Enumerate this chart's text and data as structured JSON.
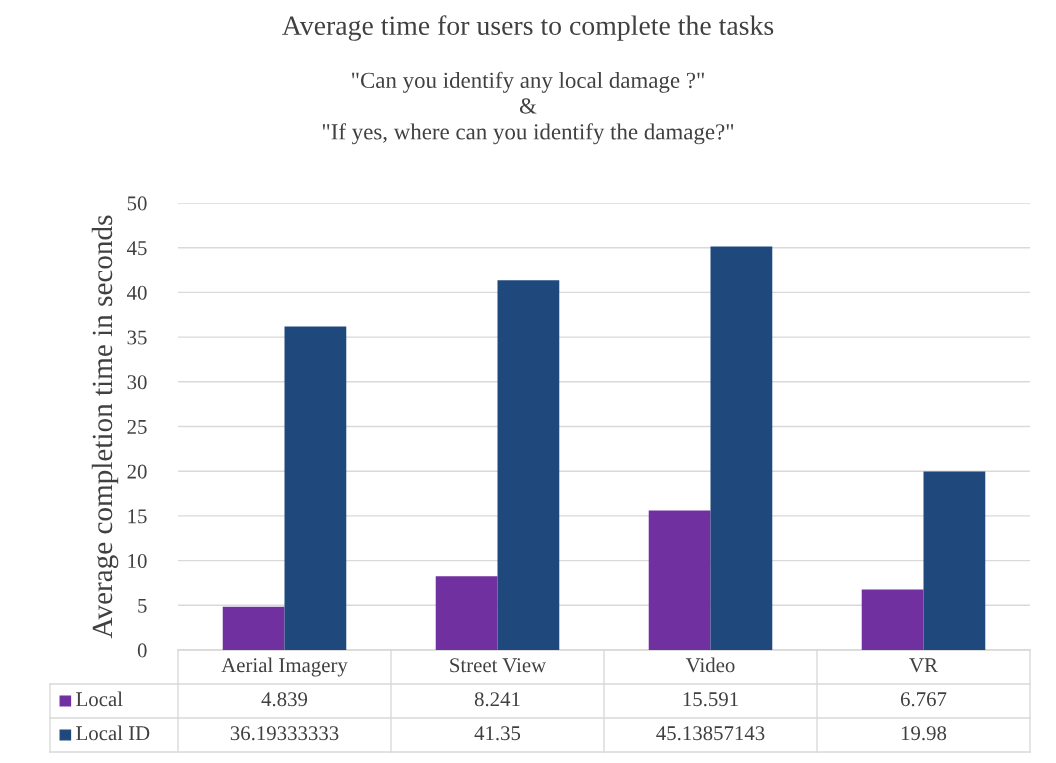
{
  "chart_data": {
    "type": "bar",
    "title": "Average time for users to complete the tasks",
    "subtitle": "\"Can you identify any local damage ?\"\n&\n\"If yes, where can you identify the damage?\"",
    "ylabel": "Average completion time in seconds",
    "categories": [
      "Aerial Imagery",
      "Street View",
      "Video",
      "VR"
    ],
    "series": [
      {
        "name": "Local",
        "color": "#7030a0",
        "values": [
          4.839,
          8.241,
          15.591,
          6.767
        ],
        "value_labels": [
          "4.839",
          "8.241",
          "15.591",
          "6.767"
        ]
      },
      {
        "name": "Local ID",
        "color": "#1f497d",
        "values": [
          36.19333333,
          41.35,
          45.13857143,
          19.98
        ],
        "value_labels": [
          "36.19333333",
          "41.35",
          "45.13857143",
          "19.98"
        ]
      }
    ],
    "ylim": [
      0,
      50
    ],
    "yticks": [
      0,
      5,
      10,
      15,
      20,
      25,
      30,
      35,
      40,
      45,
      50
    ],
    "grid": "y",
    "legend": "bottom"
  }
}
